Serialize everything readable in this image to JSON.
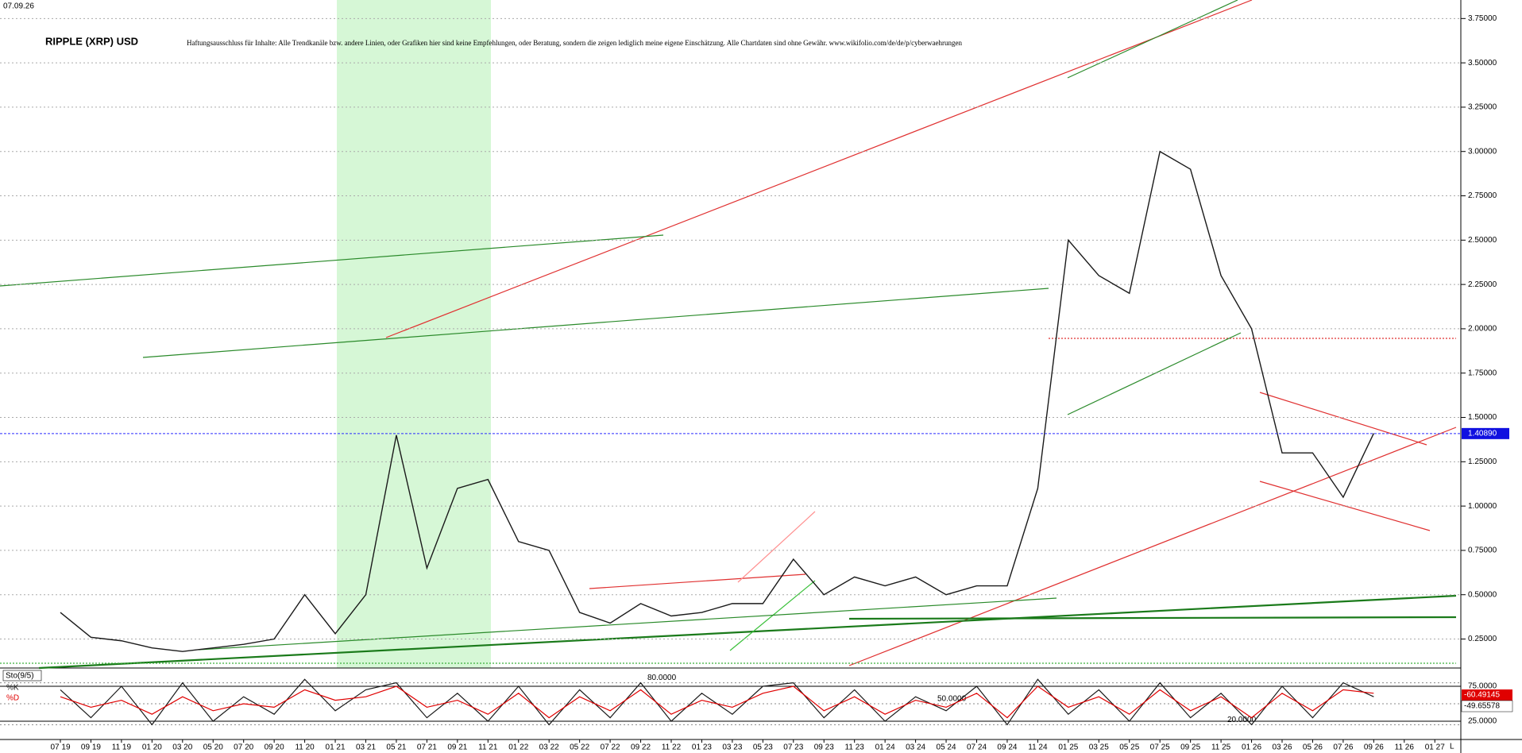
{
  "chart_data": [
    {
      "type": "line",
      "title": "RIPPLE (XRP) USD",
      "date": "07.09.26",
      "disclaimer": "Haftungsausschluss für Inhalte: Alle Trendkanäle bzw. andere Linien, oder Grafiken hier sind keine Empfehlungen, oder Beratung, sondern die zeigen lediglich meine eigene Einschätzung. Alle Chartdaten sind ohne Gewähr.  www.wikifolio.com/de/de/p/cyberwaehrungen",
      "color": "#1a1a1a",
      "values": [
        0.4,
        0.26,
        0.24,
        0.2,
        0.18,
        0.2,
        0.22,
        0.25,
        0.5,
        0.28,
        0.5,
        1.4,
        0.65,
        1.1,
        1.15,
        0.8,
        0.75,
        0.4,
        0.34,
        0.45,
        0.38,
        0.4,
        0.45,
        0.45,
        0.7,
        0.5,
        0.6,
        0.55,
        0.6,
        0.5,
        0.55,
        0.55,
        1.1,
        2.5,
        2.3,
        2.2,
        3.0,
        2.9,
        2.3,
        2.0,
        1.3,
        1.3,
        1.05,
        1.41,
        null,
        null
      ],
      "last_price": {
        "value": 1.4089,
        "label": "1.40890"
      },
      "ylim": [
        0.1,
        3.85
      ],
      "yticks": [
        {
          "value": 0.25,
          "label": "0.25000"
        },
        {
          "value": 0.5,
          "label": "0.50000"
        },
        {
          "value": 0.75,
          "label": "0.75000"
        },
        {
          "value": 1,
          "label": "1.00000"
        },
        {
          "value": 1.25,
          "label": "1.25000"
        },
        {
          "value": 1.5,
          "label": "1.50000"
        },
        {
          "value": 1.75,
          "label": "1.75000"
        },
        {
          "value": 2,
          "label": "2.00000"
        },
        {
          "value": 2.25,
          "label": "2.25000"
        },
        {
          "value": 2.5,
          "label": "2.50000"
        },
        {
          "value": 2.75,
          "label": "2.75000"
        },
        {
          "value": 3,
          "label": "3.00000"
        },
        {
          "value": 3.25,
          "label": "3.25000"
        },
        {
          "value": 3.5,
          "label": "3.50000"
        },
        {
          "value": 3.75,
          "label": "3.75000"
        }
      ],
      "grid": true
    },
    {
      "type": "line",
      "title": "Sto(9/5)",
      "categories": [
        "07 19",
        "09 19",
        "11 19",
        "01 20",
        "03 20",
        "05 20",
        "07 20",
        "09 20",
        "11 20",
        "01 21",
        "03 21",
        "05 21",
        "07 21",
        "09 21",
        "11 21",
        "01 22",
        "03 22",
        "05 22",
        "07 22",
        "09 22",
        "11 22",
        "01 23",
        "03 23",
        "05 23",
        "07 23",
        "09 23",
        "11 23",
        "01 24",
        "03 24",
        "05 24",
        "07 24",
        "09 24",
        "11 24",
        "01 25",
        "03 25",
        "05 25",
        "07 25",
        "09 25",
        "11 25",
        "01 26",
        "03 26",
        "05 26",
        "07 26",
        "09 26",
        "11 26",
        "01 27"
      ],
      "axis_end": "L",
      "series": [
        {
          "name": "%K",
          "color": "#1a1a1a",
          "values": [
            70,
            30,
            75,
            20,
            80,
            25,
            60,
            35,
            85,
            40,
            70,
            80,
            30,
            65,
            25,
            75,
            20,
            70,
            30,
            80,
            25,
            65,
            35,
            75,
            80,
            30,
            70,
            25,
            60,
            40,
            75,
            20,
            85,
            35,
            70,
            25,
            80,
            30,
            65,
            20,
            75,
            30,
            80,
            60,
            null,
            null
          ]
        },
        {
          "name": "%D",
          "color": "#e00000",
          "values": [
            60,
            45,
            55,
            35,
            60,
            40,
            50,
            45,
            70,
            55,
            60,
            75,
            45,
            55,
            35,
            65,
            30,
            60,
            40,
            70,
            35,
            55,
            45,
            65,
            75,
            40,
            60,
            35,
            55,
            45,
            65,
            30,
            75,
            45,
            60,
            35,
            70,
            40,
            60,
            30,
            65,
            40,
            70,
            65,
            null,
            null
          ]
        }
      ],
      "readouts": [
        -60.49145,
        -49.65578
      ],
      "levels": [
        {
          "value": 80,
          "label": "80.0000"
        },
        {
          "value": 50,
          "label": "50.0000"
        },
        {
          "value": 20,
          "label": "20.0000"
        }
      ],
      "ylim": [
        0,
        100
      ],
      "yticks": [
        {
          "value": 75,
          "label": "75.0000"
        },
        {
          "value": 25,
          "label": "25.0000"
        }
      ]
    }
  ]
}
